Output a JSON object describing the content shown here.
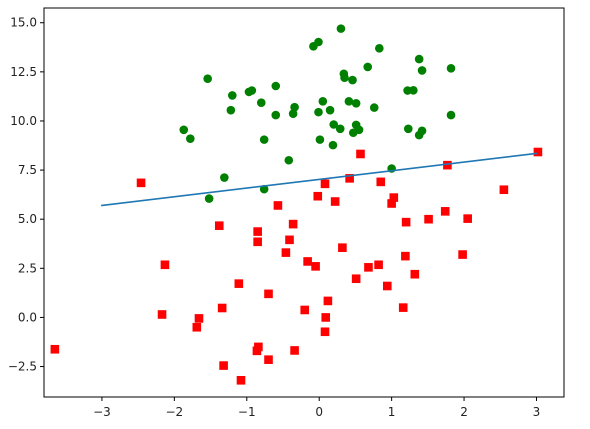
{
  "chart_data": {
    "type": "scatter",
    "xlim": [
      -3.8,
      3.38
    ],
    "ylim": [
      -4.05,
      15.75
    ],
    "x_ticks": [
      -3,
      -2,
      -1,
      0,
      1,
      2,
      3
    ],
    "x_tick_labels": [
      "−3",
      "−2",
      "−1",
      "0",
      "1",
      "2",
      "3"
    ],
    "y_ticks": [
      -2.5,
      0.0,
      2.5,
      5.0,
      7.5,
      10.0,
      12.5,
      15.0
    ],
    "y_tick_labels": [
      "−2.5",
      "0.0",
      "2.5",
      "5.0",
      "7.5",
      "10.0",
      "12.5",
      "15.0"
    ],
    "grid": false,
    "legend": "none",
    "title": "",
    "xlabel": "",
    "ylabel": "",
    "series": [
      {
        "marker": "circle",
        "color": "#008000",
        "points": [
          [
            -1.54,
            12.15
          ],
          [
            -1.2,
            11.3
          ],
          [
            -0.93,
            11.55
          ],
          [
            -0.97,
            11.48
          ],
          [
            -0.8,
            10.93
          ],
          [
            -0.6,
            11.78
          ],
          [
            -1.22,
            10.55
          ],
          [
            -0.76,
            9.05
          ],
          [
            -0.6,
            10.3
          ],
          [
            -0.36,
            10.37
          ],
          [
            -0.34,
            10.7
          ],
          [
            -0.42,
            8.0
          ],
          [
            -1.87,
            9.55
          ],
          [
            -1.78,
            9.1
          ],
          [
            -1.31,
            7.12
          ],
          [
            -1.52,
            6.05
          ],
          [
            -0.76,
            6.53
          ],
          [
            -0.08,
            13.8
          ],
          [
            -0.01,
            14.02
          ],
          [
            0.3,
            14.7
          ],
          [
            0.34,
            12.4
          ],
          [
            0.35,
            12.2
          ],
          [
            0.46,
            12.08
          ],
          [
            0.67,
            12.75
          ],
          [
            0.83,
            13.7
          ],
          [
            0.05,
            11.0
          ],
          [
            0.41,
            11.0
          ],
          [
            0.51,
            10.9
          ],
          [
            0.76,
            10.68
          ],
          [
            -0.01,
            10.45
          ],
          [
            0.15,
            10.55
          ],
          [
            0.2,
            9.82
          ],
          [
            0.29,
            9.6
          ],
          [
            0.47,
            9.4
          ],
          [
            0.55,
            9.55
          ],
          [
            0.51,
            9.8
          ],
          [
            0.01,
            9.05
          ],
          [
            0.19,
            8.77
          ],
          [
            1.38,
            13.15
          ],
          [
            1.42,
            12.57
          ],
          [
            1.82,
            12.68
          ],
          [
            1.22,
            11.55
          ],
          [
            1.3,
            11.56
          ],
          [
            1.23,
            9.6
          ],
          [
            1.38,
            9.28
          ],
          [
            1.42,
            9.5
          ],
          [
            1.82,
            10.3
          ],
          [
            1.0,
            7.58
          ]
        ]
      },
      {
        "marker": "square",
        "color": "#ff0000",
        "points": [
          [
            -3.65,
            -1.62
          ],
          [
            -2.46,
            6.85
          ],
          [
            -2.13,
            2.68
          ],
          [
            -2.17,
            0.15
          ],
          [
            -1.69,
            -0.5
          ],
          [
            -1.66,
            -0.05
          ],
          [
            -1.38,
            4.67
          ],
          [
            -1.32,
            -2.45
          ],
          [
            -1.34,
            0.48
          ],
          [
            -1.08,
            -3.2
          ],
          [
            -1.11,
            1.72
          ],
          [
            -0.85,
            4.37
          ],
          [
            -0.85,
            3.85
          ],
          [
            -0.86,
            -1.7
          ],
          [
            -0.84,
            -1.5
          ],
          [
            -0.7,
            -2.15
          ],
          [
            -0.7,
            1.2
          ],
          [
            -0.57,
            5.7
          ],
          [
            -0.46,
            3.3
          ],
          [
            -0.41,
            3.95
          ],
          [
            -0.36,
            4.75
          ],
          [
            -0.34,
            -1.68
          ],
          [
            -0.2,
            0.38
          ],
          [
            -0.16,
            2.85
          ],
          [
            -0.05,
            2.6
          ],
          [
            -0.02,
            6.17
          ],
          [
            0.08,
            6.8
          ],
          [
            0.08,
            -0.73
          ],
          [
            0.09,
            0.0
          ],
          [
            0.12,
            0.84
          ],
          [
            0.22,
            5.9
          ],
          [
            0.32,
            3.55
          ],
          [
            0.42,
            7.08
          ],
          [
            0.51,
            1.97
          ],
          [
            0.57,
            8.32
          ],
          [
            0.68,
            2.55
          ],
          [
            0.82,
            2.68
          ],
          [
            0.85,
            6.9
          ],
          [
            0.94,
            1.6
          ],
          [
            1.0,
            5.8
          ],
          [
            1.03,
            6.1
          ],
          [
            1.16,
            0.5
          ],
          [
            1.19,
            3.12
          ],
          [
            1.2,
            4.85
          ],
          [
            1.32,
            2.2
          ],
          [
            1.51,
            5.0
          ],
          [
            1.74,
            5.4
          ],
          [
            1.77,
            7.75
          ],
          [
            1.98,
            3.2
          ],
          [
            2.05,
            5.03
          ],
          [
            2.55,
            6.5
          ],
          [
            3.02,
            8.42
          ]
        ]
      }
    ],
    "line": {
      "color": "#1f77b4",
      "x": [
        -3.0,
        3.0
      ],
      "y": [
        5.7,
        8.35
      ]
    }
  }
}
